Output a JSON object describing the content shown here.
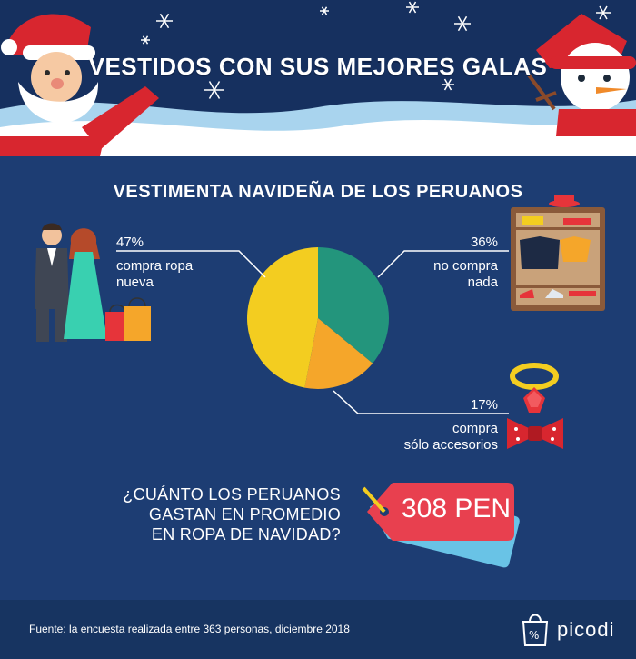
{
  "header": {
    "title": "VESTIDOS CON SUS MEJORES GALAS"
  },
  "colors": {
    "background": "#1d3d73",
    "header_sky": "#16305f",
    "footer": "#173461",
    "price_tag": "#e8404f",
    "tag_shadow": "#69c3e6",
    "label_line": "#ffffff"
  },
  "chart_data": {
    "type": "pie",
    "title": "VESTIMENTA NAVIDEÑA DE LOS PERUANOS",
    "slices": [
      {
        "percent_label": "36%",
        "value": 36,
        "label_line1": "no compra",
        "label_line2": "nada",
        "color": "#23957c"
      },
      {
        "percent_label": "17%",
        "value": 17,
        "label_line1": "compra",
        "label_line2": "sólo accesorios",
        "color": "#f5a62a"
      },
      {
        "percent_label": "47%",
        "value": 47,
        "label_line1": "compra ropa",
        "label_line2": "nueva",
        "color": "#f3cd20"
      }
    ]
  },
  "question": {
    "line1": "¿CUÁNTO LOS PERUANOS",
    "line2": "GASTAN EN PROMEDIO",
    "line3": "EN ROPA DE NAVIDAD?"
  },
  "price": {
    "value": "308 PEN"
  },
  "footer": {
    "source": "Fuente: la encuesta realizada entre 363 personas, diciembre 2018",
    "brand": "picodi"
  },
  "icons": [
    "santa-icon",
    "snowman-icon",
    "snowflake-icon",
    "couple-illustration",
    "shopping-bags-icon",
    "wardrobe-icon",
    "necklace-icon",
    "bow-tie-icon",
    "price-tag-icon",
    "picodi-logo-icon"
  ]
}
